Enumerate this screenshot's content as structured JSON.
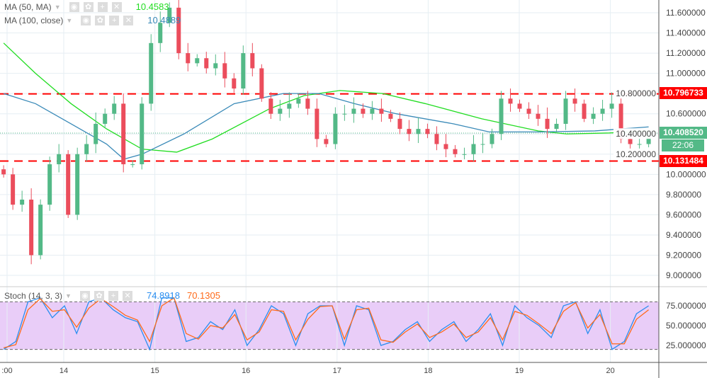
{
  "indicators": {
    "ma50": {
      "label": "MA (50, MA)",
      "value": "10.4583",
      "color": "#22dd22"
    },
    "ma100": {
      "label": "MA (100, close)",
      "value": "10.4889",
      "color": "#3a8ab8"
    },
    "stoch": {
      "label": "Stoch (14, 3, 3)",
      "k_value": "74.8918",
      "d_value": "70.1305",
      "k_color": "#2a8ef0",
      "d_color": "#ff6a1a"
    }
  },
  "price_tags": {
    "resistance": "10.796733",
    "current": "10.408520",
    "countdown": "22:06",
    "support": "10.131484"
  },
  "chart_data": [
    {
      "type": "candlestick",
      "y_ticks": [
        "11.600000",
        "11.400000",
        "11.200000",
        "11.000000",
        "10.800000",
        "10.600000",
        "10.400000",
        "10.200000",
        "10.000000",
        "9.800000",
        "9.600000",
        "9.400000",
        "9.200000",
        "9.000000"
      ],
      "ylim": [
        8.9,
        11.72
      ],
      "x_ticks": [
        ":00",
        "14",
        "15",
        "16",
        "17",
        "18",
        "19",
        "20"
      ],
      "x_range_days": [
        13.34,
        20.42
      ],
      "horizontal_lines": [
        10.796733,
        10.131484
      ],
      "last_price": 10.40852,
      "colors": {
        "up": "#53b987",
        "down": "#eb4d5c"
      },
      "closes": [
        10.0,
        9.7,
        9.75,
        9.2,
        9.7,
        10.1,
        10.2,
        9.6,
        10.2,
        10.3,
        10.5,
        10.6,
        10.7,
        10.1,
        10.1,
        10.7,
        11.3,
        11.5,
        11.65,
        11.2,
        11.1,
        11.15,
        11.05,
        11.1,
        10.95,
        10.85,
        11.2,
        11.05,
        10.75,
        10.6,
        10.65,
        10.7,
        10.75,
        10.65,
        10.35,
        10.3,
        10.6,
        10.6,
        10.65,
        10.6,
        10.65,
        10.6,
        10.55,
        10.45,
        10.4,
        10.45,
        10.4,
        10.3,
        10.25,
        10.2,
        10.2,
        10.3,
        10.3,
        10.4,
        10.75,
        10.7,
        10.65,
        10.6,
        10.55,
        10.45,
        10.5,
        10.75,
        10.7,
        10.55,
        10.6,
        10.65,
        10.7,
        10.35,
        10.3,
        10.3,
        10.4
      ],
      "series": [
        {
          "name": "MA (50, MA)",
          "points": [
            [
              13.34,
              11.3
            ],
            [
              13.69,
              11.0
            ],
            [
              14.08,
              10.7
            ],
            [
              14.47,
              10.45
            ],
            [
              14.86,
              10.25
            ],
            [
              15.24,
              10.22
            ],
            [
              15.63,
              10.35
            ],
            [
              16.26,
              10.65
            ],
            [
              16.64,
              10.78
            ],
            [
              17.03,
              10.83
            ],
            [
              17.5,
              10.8
            ],
            [
              17.97,
              10.7
            ],
            [
              18.59,
              10.55
            ],
            [
              19.21,
              10.43
            ],
            [
              19.52,
              10.4
            ],
            [
              19.99,
              10.41
            ],
            [
              20.42,
              10.43
            ]
          ]
        },
        {
          "name": "MA (100, close)",
          "points": [
            [
              13.34,
              10.8
            ],
            [
              13.69,
              10.7
            ],
            [
              14.08,
              10.5
            ],
            [
              14.47,
              10.3
            ],
            [
              14.66,
              10.15
            ],
            [
              14.86,
              10.2
            ],
            [
              15.32,
              10.4
            ],
            [
              15.87,
              10.7
            ],
            [
              16.41,
              10.8
            ],
            [
              16.8,
              10.8
            ],
            [
              17.19,
              10.7
            ],
            [
              17.65,
              10.6
            ],
            [
              18.28,
              10.5
            ],
            [
              18.67,
              10.42
            ],
            [
              19.21,
              10.42
            ],
            [
              19.83,
              10.43
            ],
            [
              20.42,
              10.47
            ]
          ]
        }
      ]
    },
    {
      "type": "line",
      "y_ticks": [
        "75.000000",
        "50.000000",
        "25.000000"
      ],
      "ylim": [
        10,
        92
      ],
      "bands": [
        80,
        20
      ],
      "x_range_days": [
        13.34,
        20.42
      ],
      "series": [
        {
          "values": [
            20,
            30,
            80,
            85,
            60,
            75,
            40,
            80,
            85,
            70,
            60,
            55,
            20,
            85,
            85,
            30,
            35,
            55,
            45,
            70,
            25,
            45,
            75,
            65,
            25,
            65,
            75,
            75,
            25,
            75,
            70,
            25,
            30,
            45,
            55,
            30,
            45,
            55,
            30,
            45,
            65,
            25,
            75,
            60,
            50,
            35,
            75,
            80,
            40,
            70,
            20,
            30,
            65,
            75
          ]
        },
        {
          "values": [
            22,
            26,
            70,
            84,
            68,
            70,
            48,
            72,
            84,
            74,
            63,
            57,
            30,
            75,
            85,
            40,
            33,
            50,
            47,
            64,
            32,
            42,
            70,
            68,
            32,
            58,
            74,
            75,
            33,
            70,
            72,
            32,
            29,
            42,
            52,
            35,
            42,
            52,
            35,
            42,
            60,
            32,
            68,
            63,
            52,
            40,
            68,
            79,
            47,
            64,
            27,
            27,
            58,
            70
          ]
        }
      ]
    }
  ]
}
